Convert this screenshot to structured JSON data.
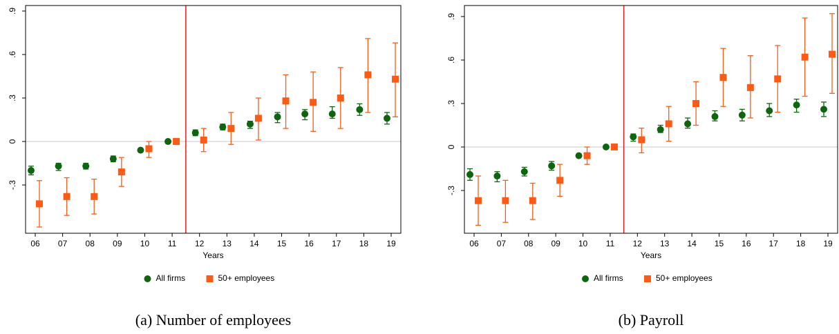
{
  "chart_data": [
    {
      "type": "errorbar",
      "caption": "(a) Number of employees",
      "xlabel": "Years",
      "categories": [
        "06",
        "07",
        "08",
        "09",
        "10",
        "11",
        "12",
        "13",
        "14",
        "15",
        "16",
        "17",
        "18",
        "19"
      ],
      "reference_line_after": "11",
      "hline": 0,
      "ylim": [
        -0.633,
        0.938
      ],
      "yticks": [
        {
          "value": -0.3,
          "label": "-.3"
        },
        0,
        {
          "value": 0.3,
          "label": ".3"
        },
        {
          "value": 0.6,
          "label": ".6"
        },
        {
          "value": 0.9,
          "label": ".9"
        }
      ],
      "series": [
        {
          "name": "All firms",
          "color": "#0d660d",
          "marker": "circle",
          "values": [
            -0.2,
            -0.17,
            -0.17,
            -0.12,
            -0.06,
            0,
            0.06,
            0.1,
            0.12,
            0.17,
            0.19,
            0.19,
            0.22,
            0.16
          ],
          "ci_low": [
            -0.23,
            -0.2,
            -0.19,
            -0.14,
            -0.07,
            0,
            0.04,
            0.08,
            0.09,
            0.13,
            0.15,
            0.16,
            0.18,
            0.12
          ],
          "ci_high": [
            -0.17,
            -0.15,
            -0.15,
            -0.1,
            -0.05,
            0,
            0.08,
            0.12,
            0.14,
            0.2,
            0.22,
            0.24,
            0.26,
            0.2
          ]
        },
        {
          "name": "50+ employees",
          "color": "#ff5a14",
          "marker": "square",
          "values": [
            -0.43,
            -0.38,
            -0.38,
            -0.21,
            -0.05,
            0,
            0.01,
            0.09,
            0.16,
            0.28,
            0.27,
            0.3,
            0.46,
            0.43
          ],
          "ci_low": [
            -0.59,
            -0.51,
            -0.5,
            -0.31,
            -0.11,
            0,
            -0.07,
            -0.02,
            0.01,
            0.09,
            0.07,
            0.09,
            0.2,
            0.17
          ],
          "ci_high": [
            -0.27,
            -0.25,
            -0.26,
            -0.11,
            0.0,
            0,
            0.09,
            0.2,
            0.3,
            0.46,
            0.48,
            0.51,
            0.71,
            0.68
          ]
        }
      ]
    },
    {
      "type": "errorbar",
      "caption": "(b) Payroll",
      "xlabel": "Years",
      "categories": [
        "06",
        "07",
        "08",
        "09",
        "10",
        "11",
        "12",
        "13",
        "14",
        "15",
        "16",
        "17",
        "18",
        "19"
      ],
      "reference_line_after": "11",
      "hline": 0,
      "ylim": [
        -0.595,
        0.976
      ],
      "yticks": [
        {
          "value": -0.3,
          "label": "-.3"
        },
        0,
        {
          "value": 0.3,
          "label": ".3"
        },
        {
          "value": 0.6,
          "label": ".6"
        },
        {
          "value": 0.9,
          "label": ".9"
        }
      ],
      "series": [
        {
          "name": "All firms",
          "color": "#0d660d",
          "marker": "circle",
          "values": [
            -0.19,
            -0.2,
            -0.17,
            -0.13,
            -0.06,
            0,
            0.07,
            0.12,
            0.16,
            0.21,
            0.22,
            0.25,
            0.29,
            0.26
          ],
          "ci_low": [
            -0.23,
            -0.24,
            -0.2,
            -0.16,
            -0.07,
            0,
            0.04,
            0.1,
            0.13,
            0.18,
            0.18,
            0.21,
            0.24,
            0.21
          ],
          "ci_high": [
            -0.15,
            -0.17,
            -0.14,
            -0.1,
            -0.05,
            0,
            0.09,
            0.15,
            0.2,
            0.25,
            0.26,
            0.3,
            0.33,
            0.31
          ]
        },
        {
          "name": "50+ employees",
          "color": "#ff5a14",
          "marker": "square",
          "values": [
            -0.37,
            -0.37,
            -0.37,
            -0.23,
            -0.06,
            0,
            0.05,
            0.16,
            0.3,
            0.48,
            0.41,
            0.47,
            0.62,
            0.64
          ],
          "ci_low": [
            -0.54,
            -0.52,
            -0.5,
            -0.34,
            -0.12,
            0,
            -0.04,
            0.04,
            0.15,
            0.28,
            0.2,
            0.24,
            0.35,
            0.37
          ],
          "ci_high": [
            -0.2,
            -0.23,
            -0.25,
            -0.12,
            0.0,
            0,
            0.13,
            0.28,
            0.45,
            0.68,
            0.63,
            0.7,
            0.89,
            0.92
          ]
        }
      ]
    }
  ]
}
